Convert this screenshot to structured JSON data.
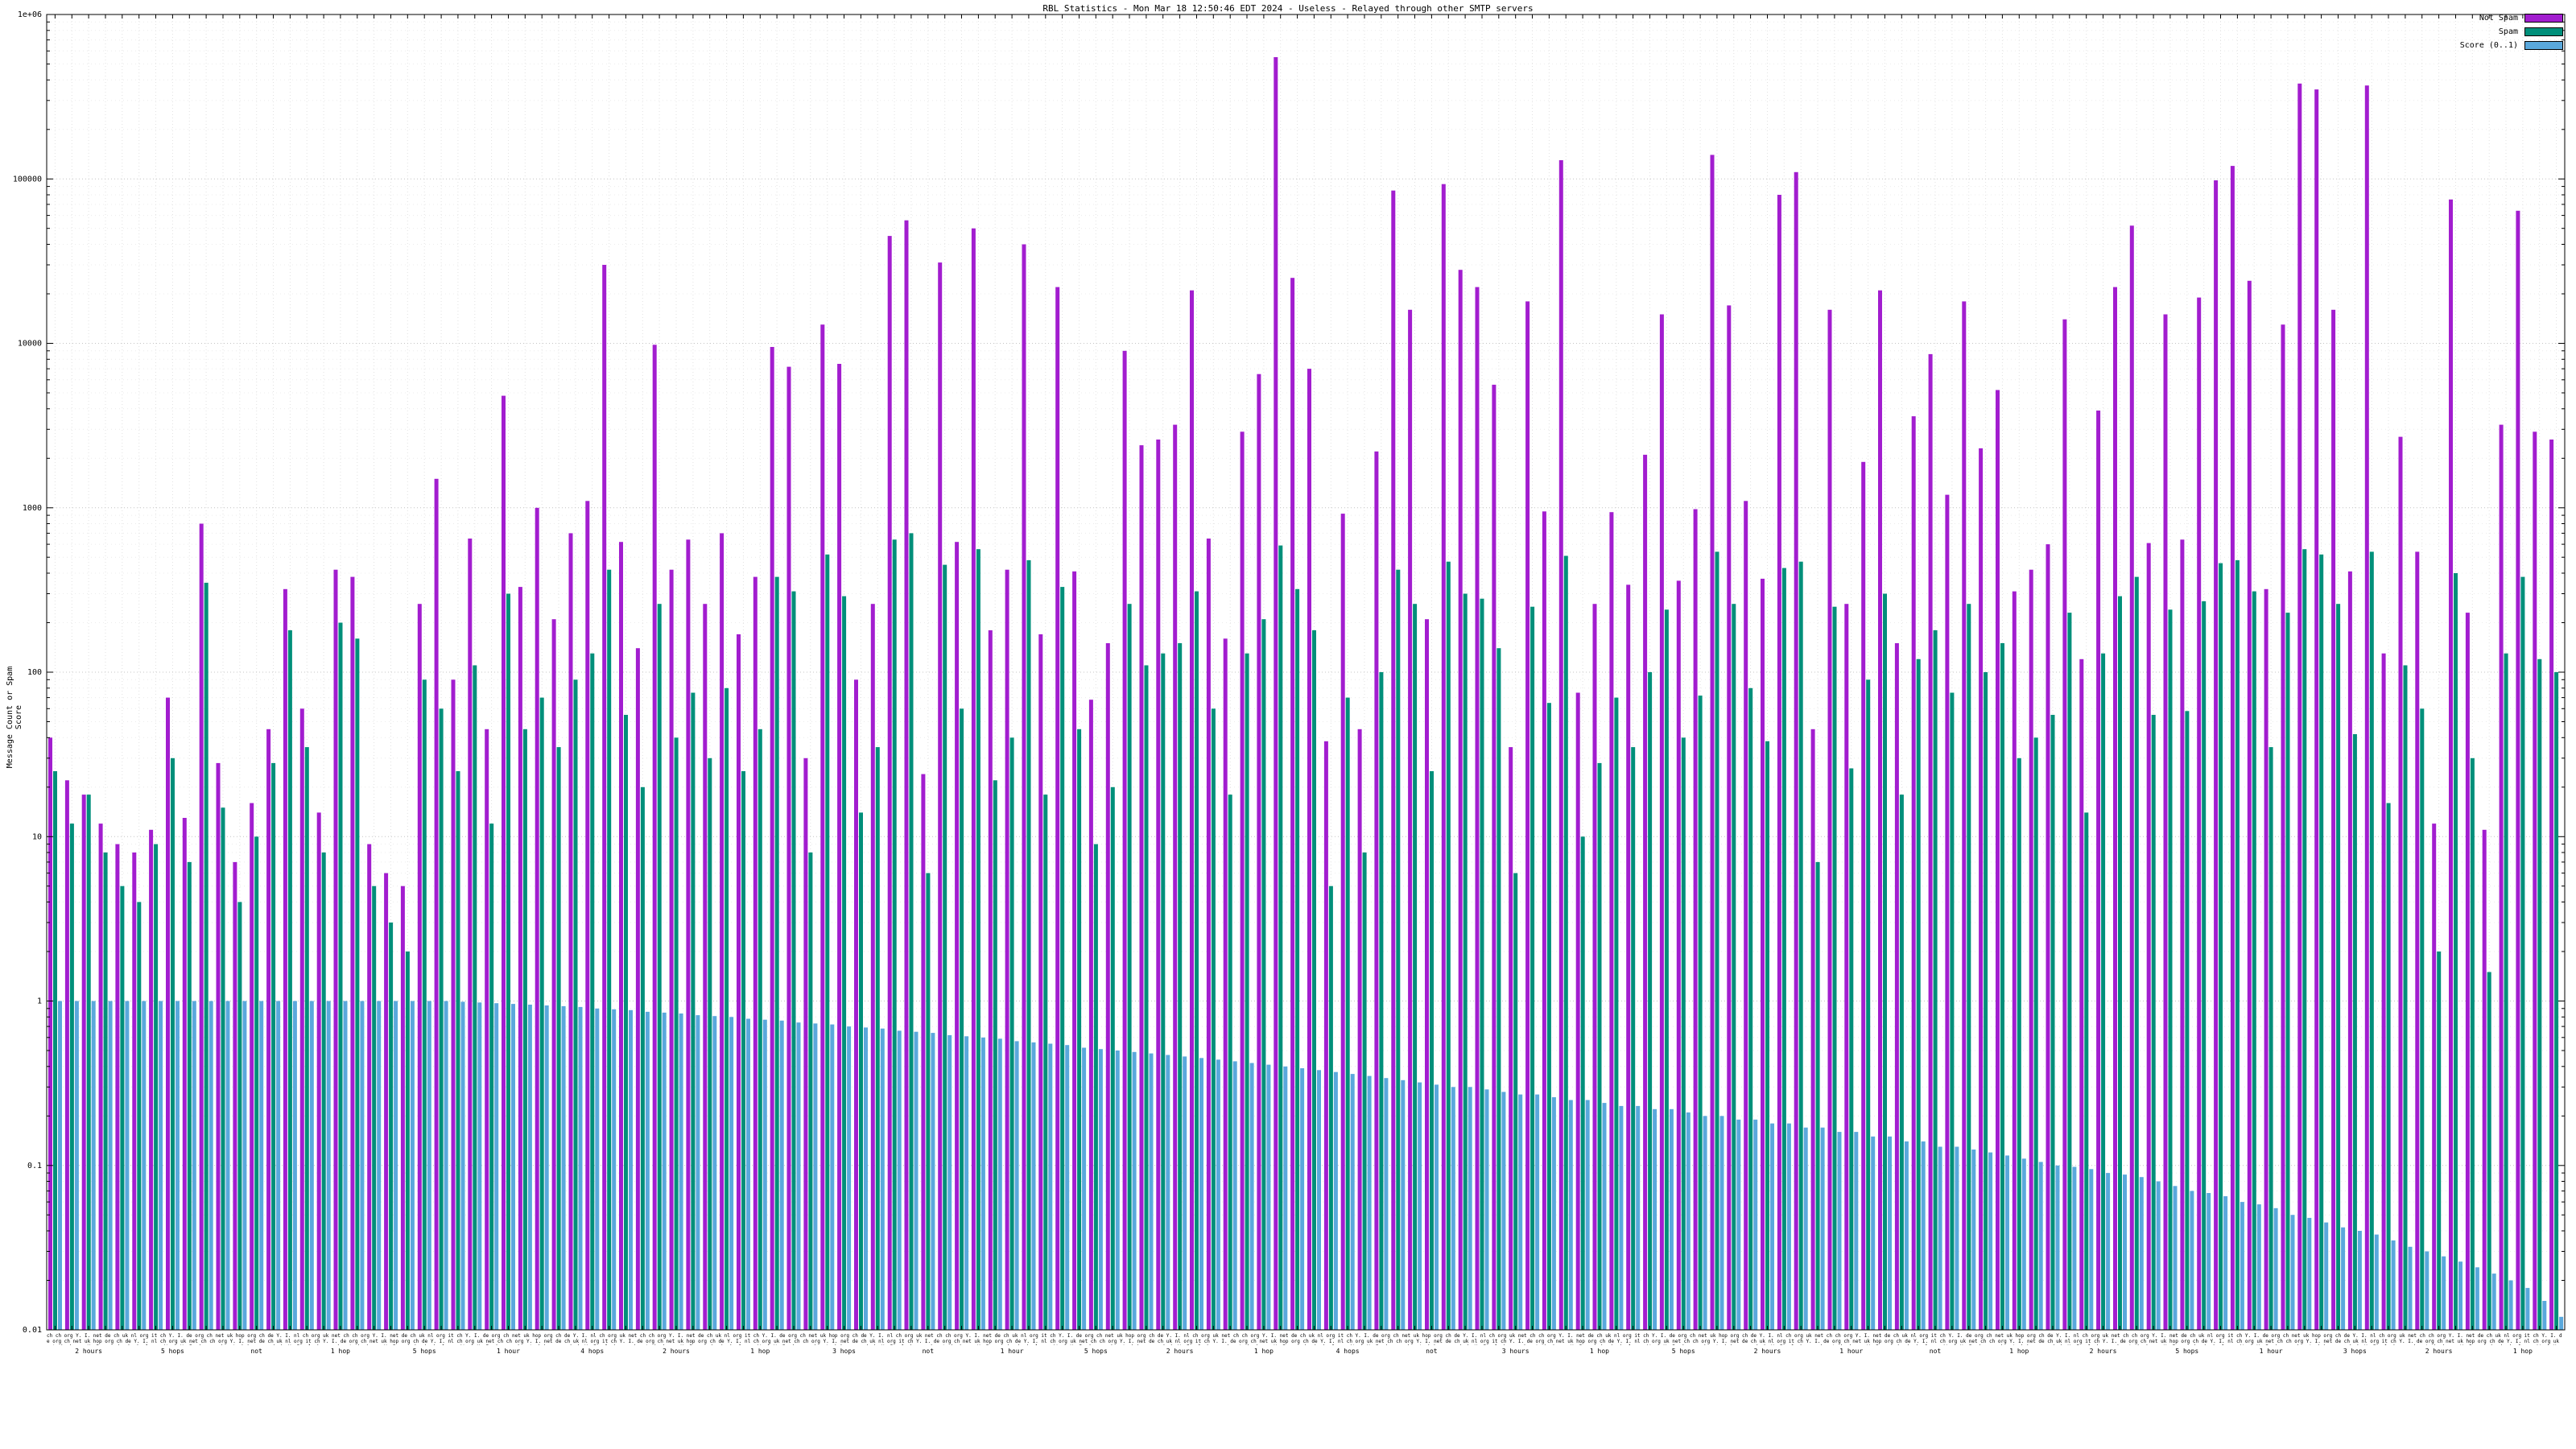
{
  "title": "RBL Statistics - Mon Mar 18 12:50:46 EDT 2024 - Useless - Relayed through other SMTP servers",
  "y_axis_label": "Message Count or Spam Score",
  "legend": [
    {
      "label": "Not Spam",
      "color": "#a21dcf"
    },
    {
      "label": "Spam",
      "color": "#008f7a"
    },
    {
      "label": "Score (0..1)",
      "color": "#5aa8dc"
    }
  ],
  "y_ticks": [
    "1e+06",
    "100000",
    "10000",
    "1000",
    "100",
    "10",
    "1",
    "0.1",
    "0.01"
  ],
  "chart_data": {
    "type": "bar",
    "y_scale": "log",
    "ylim": [
      0.01,
      1000000
    ],
    "grid": true,
    "legend_position": "top-right",
    "title": "RBL Statistics - Mon Mar 18 12:50:46 EDT 2024 - Useless - Relayed through other SMTP servers",
    "ylabel": "Message Count or Spam Score",
    "series": [
      {
        "name": "Not Spam",
        "color": "#a21dcf",
        "values": [
          40,
          22,
          18,
          12,
          9,
          8,
          11,
          70,
          13,
          800,
          28,
          7,
          16,
          45,
          320,
          60,
          14,
          420,
          380,
          9,
          6,
          5,
          260,
          1500,
          90,
          650,
          45,
          4800,
          330,
          1000,
          210,
          700,
          1100,
          30000,
          620,
          140,
          9800,
          420,
          640,
          260,
          700,
          170,
          380,
          9500,
          7200,
          30,
          13000,
          7500,
          90,
          260,
          45000,
          56000,
          24,
          31000,
          620,
          50000,
          180,
          420,
          40000,
          170,
          22000,
          410,
          68,
          150,
          9000,
          2400,
          2600,
          3200,
          21000,
          650,
          160,
          2900,
          6500,
          550000,
          25000,
          7000,
          38,
          920,
          45,
          2200,
          85000,
          16000,
          210,
          93000,
          28000,
          22000,
          5600,
          35,
          18000,
          950,
          130000,
          75,
          260,
          940,
          340,
          2100,
          15000,
          360,
          980,
          140000,
          17000,
          1100,
          370,
          80000,
          110000,
          45,
          16000,
          260,
          1900,
          21000,
          150,
          3600,
          8600,
          1200,
          18000,
          2300,
          5200,
          310,
          420,
          600,
          14000,
          120,
          3900,
          22000,
          52000,
          610,
          15000,
          640,
          19000,
          98000,
          120000,
          24000,
          320,
          13000,
          380000,
          350000,
          16000,
          410,
          370000,
          130,
          2700,
          540,
          12,
          75000,
          230,
          11,
          3200,
          64000,
          2900,
          2600
        ]
      },
      {
        "name": "Spam",
        "color": "#008f7a",
        "values": [
          25,
          12,
          18,
          8,
          5,
          4,
          9,
          30,
          7,
          350,
          15,
          4,
          10,
          28,
          180,
          35,
          8,
          200,
          160,
          5,
          3,
          2,
          90,
          60,
          25,
          110,
          12,
          300,
          45,
          70,
          35,
          90,
          130,
          420,
          55,
          20,
          260,
          40,
          75,
          30,
          80,
          25,
          45,
          380,
          310,
          8,
          520,
          290,
          14,
          35,
          640,
          700,
          6,
          450,
          60,
          560,
          22,
          40,
          480,
          18,
          330,
          45,
          9,
          20,
          260,
          110,
          130,
          150,
          310,
          60,
          18,
          130,
          210,
          590,
          320,
          180,
          5,
          70,
          8,
          100,
          420,
          260,
          25,
          470,
          300,
          280,
          140,
          6,
          250,
          65,
          510,
          10,
          28,
          70,
          35,
          100,
          240,
          40,
          72,
          540,
          260,
          80,
          38,
          430,
          470,
          7,
          250,
          26,
          90,
          300,
          18,
          120,
          180,
          75,
          260,
          100,
          150,
          30,
          40,
          55,
          230,
          14,
          130,
          290,
          380,
          55,
          240,
          58,
          270,
          460,
          480,
          310,
          35,
          230,
          560,
          520,
          260,
          42,
          540,
          16,
          110,
          60,
          2,
          400,
          30,
          1.5,
          130,
          380,
          120,
          100
        ]
      },
      {
        "name": "Score (0..1)",
        "color": "#5aa8dc",
        "values": [
          1,
          1,
          1,
          1,
          1,
          1,
          1,
          1,
          1,
          1,
          1,
          1,
          1,
          1,
          1,
          1,
          1,
          1,
          1,
          1,
          1,
          1,
          1,
          1,
          0.99,
          0.98,
          0.97,
          0.96,
          0.95,
          0.94,
          0.93,
          0.92,
          0.9,
          0.89,
          0.88,
          0.86,
          0.85,
          0.84,
          0.82,
          0.81,
          0.8,
          0.78,
          0.77,
          0.76,
          0.74,
          0.73,
          0.72,
          0.7,
          0.69,
          0.68,
          0.66,
          0.65,
          0.64,
          0.62,
          0.61,
          0.6,
          0.59,
          0.57,
          0.56,
          0.55,
          0.54,
          0.52,
          0.51,
          0.5,
          0.49,
          0.48,
          0.47,
          0.46,
          0.45,
          0.44,
          0.43,
          0.42,
          0.41,
          0.4,
          0.39,
          0.38,
          0.37,
          0.36,
          0.35,
          0.34,
          0.33,
          0.32,
          0.31,
          0.3,
          0.3,
          0.29,
          0.28,
          0.27,
          0.27,
          0.26,
          0.25,
          0.25,
          0.24,
          0.23,
          0.23,
          0.22,
          0.22,
          0.21,
          0.2,
          0.2,
          0.19,
          0.19,
          0.18,
          0.18,
          0.17,
          0.17,
          0.16,
          0.16,
          0.15,
          0.15,
          0.14,
          0.14,
          0.13,
          0.13,
          0.125,
          0.12,
          0.115,
          0.11,
          0.105,
          0.1,
          0.098,
          0.095,
          0.09,
          0.088,
          0.085,
          0.08,
          0.075,
          0.07,
          0.068,
          0.065,
          0.06,
          0.058,
          0.055,
          0.05,
          0.048,
          0.045,
          0.042,
          0.04,
          0.038,
          0.035,
          0.032,
          0.03,
          0.028,
          0.026,
          0.024,
          0.022,
          0.02,
          0.018,
          0.015,
          0.012
        ]
      }
    ],
    "x_tick_tokens": "ch ch org Y. I. net de ch uk nl org it ch Y. I. de org ch net uk hop org ch de Y. I. nl ch org uk net ",
    "x_sublabels": [
      "2 hours",
      "5 hops",
      "not",
      "1 hop",
      "5 hops",
      "1 hour",
      "4 hops",
      "2 hours",
      "1 hop",
      "3 hops",
      "not",
      "1 hour",
      "5 hops",
      "2 hours",
      "1 hop",
      "4 hops",
      "not",
      "3 hours",
      "1 hop",
      "5 hops",
      "2 hours",
      "1 hour",
      "not",
      "1 hop",
      "2 hours",
      "5 hops",
      "1 hour",
      "3 hops",
      "2 hours",
      "1 hop"
    ]
  }
}
